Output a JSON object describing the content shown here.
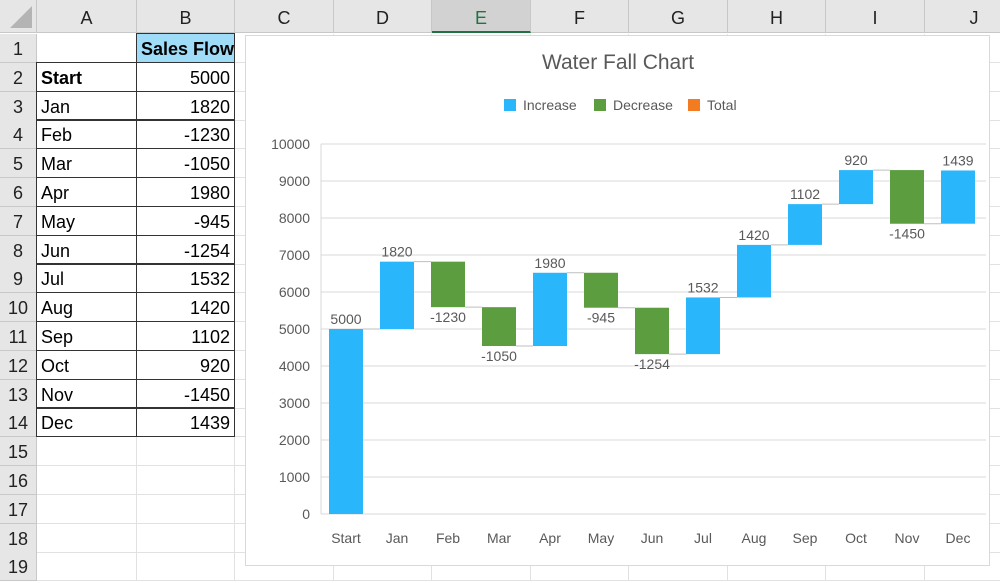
{
  "columns": [
    "A",
    "B",
    "C",
    "D",
    "E",
    "F",
    "G",
    "H",
    "I",
    "J"
  ],
  "selected_column": "E",
  "rows": [
    "1",
    "2",
    "3",
    "4",
    "5",
    "6",
    "7",
    "8",
    "9",
    "10",
    "11",
    "12",
    "13",
    "14",
    "15",
    "16",
    "17",
    "18",
    "19"
  ],
  "table": {
    "header": "Sales Flow",
    "labels": [
      "Start",
      "Jan",
      "Feb",
      "Mar",
      "Apr",
      "May",
      "Jun",
      "Jul",
      "Aug",
      "Sep",
      "Oct",
      "Nov",
      "Dec"
    ],
    "values": [
      "5000",
      "1820",
      "-1230",
      "-1050",
      "1980",
      "-945",
      "-1254",
      "1532",
      "1420",
      "1102",
      "920",
      "-1450",
      "1439"
    ]
  },
  "chart_data": {
    "type": "waterfall",
    "title": "Water Fall Chart",
    "legend": [
      {
        "name": "Increase",
        "color": "#2AB6FB"
      },
      {
        "name": "Decrease",
        "color": "#5B9D3F"
      },
      {
        "name": "Total",
        "color": "#F37C22"
      }
    ],
    "legend_position": "top",
    "categories": [
      "Start",
      "Jan",
      "Feb",
      "Mar",
      "Apr",
      "May",
      "Jun",
      "Jul",
      "Aug",
      "Sep",
      "Oct",
      "Nov",
      "Dec"
    ],
    "values": [
      5000,
      1820,
      -1230,
      -1050,
      1980,
      -945,
      -1254,
      1532,
      1420,
      1102,
      920,
      -1450,
      1439
    ],
    "data_labels": [
      "5000",
      "1820",
      "-1230",
      "-1050",
      "1980",
      "-945",
      "-1254",
      "1532",
      "1420",
      "1102",
      "920",
      "-1450",
      "1439"
    ],
    "y_ticks": [
      "0",
      "1000",
      "2000",
      "3000",
      "4000",
      "5000",
      "6000",
      "7000",
      "8000",
      "9000",
      "10000"
    ],
    "ylim": [
      0,
      10000
    ],
    "grid": true,
    "connectors": true
  }
}
